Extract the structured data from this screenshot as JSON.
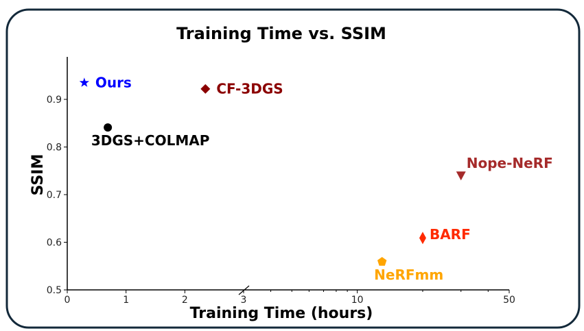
{
  "chart_data": {
    "type": "scatter",
    "title": "Training Time vs. SSIM",
    "xlabel": "Training Time (hours)",
    "ylabel": "SSIM",
    "xscale": "piecewise: linear 0-3, log 3-50 (axis break at 3)",
    "xlim": [
      0,
      50
    ],
    "ylim": [
      0.5,
      0.99
    ],
    "xticks": [
      0,
      1,
      2,
      3,
      10,
      50
    ],
    "xtick_labels": [
      "0",
      "1",
      "2",
      "3",
      "10",
      "50"
    ],
    "yticks": [
      0.5,
      0.6,
      0.7,
      0.8,
      0.9
    ],
    "ytick_labels": [
      "0.5",
      "0.6",
      "0.7",
      "0.8",
      "0.9"
    ],
    "grid": false,
    "points": [
      {
        "label": "Ours",
        "x": 0.29,
        "y": 0.935,
        "marker": "star",
        "color": "#0000ff",
        "label_pos": "right"
      },
      {
        "label": "3DGS+COLMAP",
        "x": 0.69,
        "y": 0.841,
        "marker": "circle",
        "color": "#000000",
        "label_pos": "below"
      },
      {
        "label": "CF-3DGS",
        "x": 2.35,
        "y": 0.922,
        "marker": "diamond",
        "color": "#8b0000",
        "label_pos": "right"
      },
      {
        "label": "Nope-NeRF",
        "x": 30,
        "y": 0.74,
        "marker": "triangle-down",
        "color": "#a52a2a",
        "label_pos": "upper-right"
      },
      {
        "label": "BARF",
        "x": 20,
        "y": 0.609,
        "marker": "thin-diamond",
        "color": "#ff2a00",
        "label_pos": "right"
      },
      {
        "label": "NeRFmm",
        "x": 13,
        "y": 0.559,
        "marker": "pentagon",
        "color": "#ffa500",
        "label_pos": "below"
      }
    ]
  }
}
